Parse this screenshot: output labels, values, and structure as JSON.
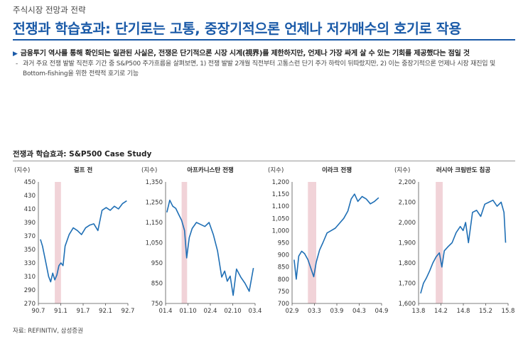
{
  "header": {
    "subtitle": "주식시장 전망과 전략",
    "title": "전쟁과 학습효과: 단기로는 고통, 중장기적으론 언제나 저가매수의 호기로 작용"
  },
  "summary": {
    "bullet": "금융투기 역사를 통해 확인되는 일관된 사실은, 전쟁은 단기적으론 시장 시계(視界)를 제한하지만, 언제나 가장 싸게 살 수 있는 기회를 제공했다는 점일 것",
    "dash": "-",
    "note": "과거 주요 전쟁 발발 직전후 기간 중 S&P500 주가흐름을 살펴보면, 1) 전쟁 발발 2개월 직전부터 고통스런 단기 주가 하락이 뒤따랐지만, 2) 이는 중장기적으론 언제나 시장 재진입 및 Bottom-fishing을 위한 전략적 호기로 기능"
  },
  "section_title": "전쟁과 학습효과: S&P500 Case Study",
  "source": "자료: REFINITIV, 삼성증권",
  "colors": {
    "title": "#1a5aa8",
    "line": "#1f6fb5",
    "shade": "#f1d3d8"
  },
  "chart_data": [
    {
      "type": "line",
      "title": "걸프 전",
      "unit": "(지수)",
      "xlabels": [
        "90.7",
        "91.1",
        "91.7",
        "92.1",
        "92.7"
      ],
      "xrange": [
        1990.45,
        1992.63
      ],
      "ylim": [
        270,
        450
      ],
      "yticks": [
        270,
        290,
        310,
        330,
        350,
        370,
        390,
        410,
        430,
        450
      ],
      "shade": [
        1990.85,
        1991.0
      ],
      "x": [
        1990.5,
        1990.55,
        1990.6,
        1990.65,
        1990.7,
        1990.75,
        1990.8,
        1990.85,
        1990.9,
        1990.95,
        1991.0,
        1991.05,
        1991.1,
        1991.2,
        1991.3,
        1991.4,
        1991.5,
        1991.6,
        1991.7,
        1991.8,
        1991.9,
        1992.0,
        1992.1,
        1992.2,
        1992.3,
        1992.4,
        1992.5,
        1992.6
      ],
      "values": [
        365,
        355,
        340,
        325,
        310,
        302,
        315,
        305,
        312,
        326,
        330,
        326,
        355,
        372,
        382,
        378,
        372,
        382,
        386,
        388,
        378,
        408,
        412,
        408,
        414,
        410,
        418,
        422
      ]
    },
    {
      "type": "line",
      "title": "아프카니스탄 전쟁",
      "unit": "(지수)",
      "xlabels": [
        "01.4",
        "01.10",
        "02.4",
        "02.10",
        "03.4"
      ],
      "xrange": [
        2001.22,
        2003.34
      ],
      "ylim": [
        750,
        1350
      ],
      "yticks": [
        750,
        850,
        950,
        1050,
        1150,
        1250,
        1350
      ],
      "shade": [
        2001.6,
        2001.73
      ],
      "x": [
        2001.25,
        2001.32,
        2001.39,
        2001.46,
        2001.53,
        2001.6,
        2001.67,
        2001.72,
        2001.78,
        2001.85,
        2001.95,
        2002.05,
        2002.15,
        2002.25,
        2002.35,
        2002.45,
        2002.55,
        2002.62,
        2002.68,
        2002.75,
        2002.82,
        2002.9,
        2003.0,
        2003.1,
        2003.2,
        2003.3
      ],
      "values": [
        1200,
        1260,
        1230,
        1220,
        1190,
        1160,
        1110,
        975,
        1075,
        1120,
        1150,
        1140,
        1130,
        1150,
        1090,
        1010,
        880,
        910,
        860,
        885,
        790,
        920,
        880,
        850,
        810,
        925
      ]
    },
    {
      "type": "line",
      "title": "이라크 전쟁",
      "unit": "(지수)",
      "xlabels": [
        "02.9",
        "03.3",
        "03.9",
        "04.3",
        "04.9"
      ],
      "xrange": [
        2002.62,
        2004.77
      ],
      "ylim": [
        700,
        1200
      ],
      "yticks": [
        700,
        750,
        800,
        850,
        900,
        950,
        1000,
        1050,
        1100,
        1150,
        1200
      ],
      "shade": [
        2003.0,
        2003.2
      ],
      "x": [
        2002.67,
        2002.72,
        2002.78,
        2002.85,
        2002.92,
        2003.0,
        2003.08,
        2003.14,
        2003.2,
        2003.28,
        2003.36,
        2003.46,
        2003.56,
        2003.66,
        2003.76,
        2003.86,
        2003.96,
        2004.04,
        2004.12,
        2004.2,
        2004.3,
        2004.4,
        2004.5,
        2004.6,
        2004.7
      ],
      "values": [
        880,
        800,
        895,
        915,
        905,
        880,
        840,
        810,
        870,
        920,
        950,
        990,
        1000,
        1010,
        1030,
        1050,
        1080,
        1130,
        1150,
        1120,
        1140,
        1130,
        1110,
        1120,
        1135
      ]
    },
    {
      "type": "line",
      "title": "러시아 크림반도 침공",
      "unit": "(지수)",
      "xlabels": [
        "13.8",
        "14.2",
        "14.8",
        "15.2",
        "15.8"
      ],
      "xrange": [
        2013.53,
        2015.72
      ],
      "ylim": [
        1600,
        2200
      ],
      "yticks": [
        1600,
        1700,
        1800,
        1900,
        2000,
        2100,
        2200
      ],
      "shade": [
        2013.95,
        2014.12
      ],
      "x": [
        2013.58,
        2013.65,
        2013.72,
        2013.8,
        2013.88,
        2013.96,
        2014.04,
        2014.1,
        2014.16,
        2014.25,
        2014.35,
        2014.45,
        2014.55,
        2014.62,
        2014.68,
        2014.75,
        2014.85,
        2014.95,
        2015.05,
        2015.15,
        2015.25,
        2015.35,
        2015.45,
        2015.55,
        2015.62,
        2015.66
      ],
      "values": [
        1650,
        1700,
        1725,
        1760,
        1800,
        1830,
        1850,
        1780,
        1860,
        1880,
        1900,
        1950,
        1980,
        1960,
        2000,
        1900,
        2050,
        2060,
        2030,
        2090,
        2100,
        2110,
        2080,
        2100,
        2050,
        1900
      ]
    }
  ]
}
